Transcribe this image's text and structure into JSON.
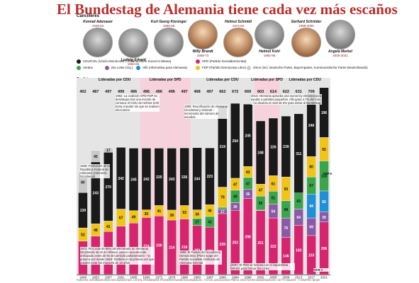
{
  "title": "El Bundestag de Alemania tiene cada vez más escaños",
  "chancellors_header": "Cancilleres",
  "chancellors": [
    {
      "name": "Konrad Adenauer",
      "years": "1949-63",
      "party": "cdu"
    },
    {
      "name": "Ludwig Erhard",
      "years": "1963-66",
      "party": "cdu"
    },
    {
      "name": "Kurt Georg Kiesinger",
      "years": "1966-69",
      "party": "cdu"
    },
    {
      "name": "Willy Brandt",
      "years": "1969-74",
      "party": "spd"
    },
    {
      "name": "Helmut Schmidt",
      "years": "1974-82",
      "party": "spd"
    },
    {
      "name": "Helmut Kohl",
      "years": "1982-98",
      "party": "cdu"
    },
    {
      "name": "Gerhard Schröder",
      "years": "1998-2005",
      "party": "spd"
    },
    {
      "name": "Angela Merkel",
      "years": "2005-2021",
      "party": "cdu"
    }
  ],
  "legend": [
    {
      "label": "CDU/CSU (Unión Demócrata Cristiana/Unión Social Cristiana)",
      "color": "#1a1a1a"
    },
    {
      "label": "SPD (Partido Socialdemócrata)",
      "color": "#d6246e"
    },
    {
      "label": "Verdes",
      "color": "#3aa54b"
    },
    {
      "label": "Die Linke (Izq.)",
      "color": "#8b5aa6"
    },
    {
      "label": "AfD (Alternativa para Alemania)",
      "color": "#1f8fd6"
    },
    {
      "label": "FDP (Partido Demócrata Libre)",
      "color": "#f0c419"
    },
    {
      "label": "Otros (incl. Deutsche Partei, Bayernpartei, Kommunistische Partei Deutschlands)",
      "color": "#c9c9c9"
    }
  ],
  "coalitions_label": "Coaliciones",
  "coalitions": [
    {
      "label": "Lideradas por CDU",
      "party": "cdu"
    },
    {
      "label": "Lideradas por SPD",
      "party": "spd"
    },
    {
      "label": "Lideradas por CDU",
      "party": "cdu"
    },
    {
      "label": "Lideradas por SPD",
      "party": "spd"
    },
    {
      "label": "Lideradas por CDU",
      "party": "cdu"
    }
  ],
  "distribution_title": "Distribución de escaños del Bundestag",
  "distribution_note": "(en la primera sesión)",
  "annotations": {
    "a1949": "1949: Formación de la República Federal de Alemania (Alemania Occidental)",
    "a1982": "1982: La coalición SPD-FDP se desintegra tras una moción de censura. El CDU de Helmut Kohl toma el poder sin que se realicen elecciones",
    "a1990": "1990: Reunificación de Alemania Occidental y Oriental – incremento del número de escaños",
    "a2013": "2013: Alemania aprueba una nueva ley electoral para ayudar a partidos pequeños. AfD gana 4,7% del voto – no alcanza el nivel de 5% para entrar al Bundestag",
    "a1972": "1972: Pico más de 90% del electorado de Alemania Occidental, de 40,6 millones, vota en una elección anticipada antes de fin del período parlamentario – la primera vez desde 1949. También es la primera vez que pueden votar los mayores de 18 años",
    "a1990b": "1990: El Partido del Socialismo Democrático (PDS) surge del Partido Socialista Unificado de Alemania Oriental",
    "a2007": "2007: El PDS se fusiona con el izquierdista WASG para formar Die Linke",
    "ssw": "SSW 1",
    "fdp0": "FDP 0"
  },
  "footer": "FUENTES: INFORMATIONEN DES BUNDESTAG, LISTEN, ERGEBNISSE FRÜHERER BUNDESTAGSWAHLEN · FOTOS: ASSOCIATED PRESS, DEUTSCHES BUNDESARCHIV, GETTY IMAGES · © GRAPHIC NEWS",
  "colors": {
    "cdu": "#1a1a1a",
    "spd": "#d6246e",
    "fdp": "#f0c419",
    "green": "#3aa54b",
    "linke": "#8b5aa6",
    "afd": "#1f8fd6",
    "other": "#c9c9c9",
    "spd_band": "#f6d3dc",
    "cdu_band": "#e5e5e5"
  },
  "chart_data": {
    "type": "bar",
    "stacked": true,
    "categories": [
      "1949",
      "1953",
      "1957",
      "1961",
      "1965",
      "1969",
      "1972",
      "1976",
      "1980",
      "1983",
      "1987",
      "1990",
      "1994",
      "1998",
      "2002",
      "2005",
      "2009",
      "2013",
      "2017",
      "2021"
    ],
    "totals": [
      402,
      487,
      497,
      499,
      496,
      496,
      496,
      496,
      497,
      498,
      497,
      662,
      672,
      669,
      603,
      614,
      622,
      631,
      709,
      735
    ],
    "series": [
      {
        "name": "CDU/CSU",
        "key": "cdu",
        "values": [
          139,
          243,
          270,
          242,
          245,
          242,
          225,
          243,
          226,
          244,
          223,
          319,
          294,
          245,
          248,
          226,
          239,
          311,
          246,
          196
        ]
      },
      {
        "name": "FDP",
        "key": "fdp",
        "values": [
          52,
          48,
          41,
          67,
          49,
          30,
          41,
          39,
          53,
          34,
          46,
          79,
          47,
          43,
          47,
          61,
          93,
          0,
          80,
          92
        ]
      },
      {
        "name": "Verdes",
        "key": "green",
        "values": [
          0,
          0,
          0,
          0,
          0,
          0,
          0,
          0,
          0,
          27,
          42,
          8,
          49,
          47,
          55,
          51,
          68,
          63,
          67,
          118
        ]
      },
      {
        "name": "Die Linke",
        "key": "linke",
        "values": [
          0,
          0,
          0,
          0,
          0,
          0,
          0,
          0,
          0,
          0,
          0,
          17,
          30,
          36,
          2,
          54,
          76,
          64,
          69,
          39
        ]
      },
      {
        "name": "AfD",
        "key": "afd",
        "values": [
          0,
          0,
          0,
          0,
          0,
          0,
          0,
          0,
          0,
          0,
          0,
          0,
          0,
          0,
          0,
          0,
          0,
          0,
          94,
          83
        ]
      },
      {
        "name": "SPD",
        "key": "spd",
        "values": [
          131,
          151,
          169,
          190,
          202,
          224,
          230,
          214,
          218,
          193,
          186,
          239,
          252,
          298,
          251,
          222,
          146,
          193,
          153,
          206
        ]
      },
      {
        "name": "Otros",
        "key": "other",
        "values": [
          80,
          45,
          17,
          0,
          0,
          0,
          0,
          0,
          0,
          0,
          0,
          0,
          0,
          0,
          0,
          0,
          0,
          0,
          0,
          1
        ]
      }
    ]
  }
}
